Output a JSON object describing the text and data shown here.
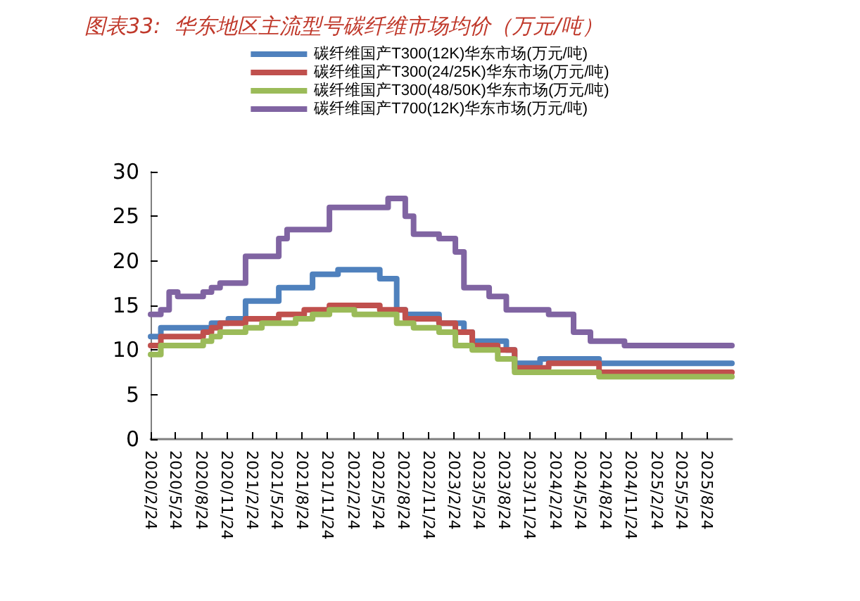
{
  "chart_data": {
    "type": "step",
    "title": "图表33:  华东地区主流型号碳纤维市场均价（万元/吨）",
    "legend": "top",
    "marker": "none",
    "line_style": "solid",
    "grid": false,
    "xlim": [
      "2020-02-24",
      "2025-11-24"
    ],
    "xticks": [
      {
        "value": "2020-02-24",
        "label": "2020/2/24"
      },
      {
        "value": "2020-05-24",
        "label": "2020/5/24"
      },
      {
        "value": "2020-08-24",
        "label": "2020/8/24"
      },
      {
        "value": "2020-11-24",
        "label": "2020/11/24"
      },
      {
        "value": "2021-02-24",
        "label": "2021/2/24"
      },
      {
        "value": "2021-05-24",
        "label": "2021/5/24"
      },
      {
        "value": "2021-08-24",
        "label": "2021/8/24"
      },
      {
        "value": "2021-11-24",
        "label": "2021/11/24"
      },
      {
        "value": "2022-02-24",
        "label": "2022/2/24"
      },
      {
        "value": "2022-05-24",
        "label": "2022/5/24"
      },
      {
        "value": "2022-08-24",
        "label": "2022/8/24"
      },
      {
        "value": "2022-11-24",
        "label": "2022/11/24"
      },
      {
        "value": "2023-02-24",
        "label": "2023/2/24"
      },
      {
        "value": "2023-05-24",
        "label": "2023/5/24"
      },
      {
        "value": "2023-08-24",
        "label": "2023/8/24"
      },
      {
        "value": "2023-11-24",
        "label": "2023/11/24"
      },
      {
        "value": "2024-02-24",
        "label": "2024/2/24"
      },
      {
        "value": "2024-05-24",
        "label": "2024/5/24"
      },
      {
        "value": "2024-08-24",
        "label": "2024/8/24"
      },
      {
        "value": "2024-11-24",
        "label": "2024/11/24"
      },
      {
        "value": "2025-02-24",
        "label": "2025/2/24"
      },
      {
        "value": "2025-05-24",
        "label": "2025/5/24"
      },
      {
        "value": "2025-08-24",
        "label": "2025/8/24"
      }
    ],
    "ylim": [
      0,
      30
    ],
    "yticks": [
      0,
      5,
      10,
      15,
      20,
      25,
      30
    ],
    "series": [
      {
        "name": "碳纤维国产T300(12K)华东市场(万元/吨)",
        "color": "#4f81bd",
        "x": [
          "2020-02-24",
          "2020-04",
          "2020-10",
          "2020-12",
          "2021-02",
          "2021-06",
          "2021-10",
          "2022-01",
          "2022-06",
          "2022-08",
          "2022-09",
          "2023-01",
          "2023-04",
          "2023-05",
          "2023-09",
          "2023-10",
          "2024-01",
          "2024-08",
          "2025-11-24"
        ],
        "values": [
          11.5,
          12.5,
          13,
          13.5,
          15.5,
          17,
          18.5,
          19,
          18,
          14.5,
          14,
          13,
          12,
          11,
          10,
          8.5,
          9,
          8.5,
          8.5
        ]
      },
      {
        "name": "碳纤维国产T300(24/25K)华东市场(万元/吨)",
        "color": "#c0504d",
        "x": [
          "2020-02-24",
          "2020-04",
          "2020-09",
          "2020-10",
          "2020-11",
          "2021-02",
          "2021-06",
          "2021-09",
          "2021-12",
          "2022-06",
          "2022-08",
          "2022-09",
          "2023-01",
          "2023-03",
          "2023-05",
          "2023-08",
          "2023-10",
          "2024-02",
          "2024-08",
          "2025-11-24"
        ],
        "values": [
          10.5,
          11.5,
          12,
          12.5,
          13,
          13.5,
          14,
          14.5,
          15,
          14.5,
          14.5,
          13.5,
          13,
          12,
          10.5,
          10,
          8,
          8.5,
          7.5,
          7.5
        ]
      },
      {
        "name": "碳纤维国产T300(48/50K)华东市场(万元/吨)",
        "color": "#9bbb59",
        "x": [
          "2020-02-24",
          "2020-04",
          "2020-09",
          "2020-10",
          "2020-11",
          "2021-02",
          "2021-04",
          "2021-08",
          "2021-10",
          "2021-12",
          "2022-03",
          "2022-08",
          "2022-10",
          "2023-01",
          "2023-03",
          "2023-05",
          "2023-08",
          "2023-10",
          "2024-08",
          "2025-11-24"
        ],
        "values": [
          9.5,
          10.5,
          11,
          11.5,
          12,
          12.5,
          13,
          13.5,
          14,
          14.5,
          14,
          13,
          12.5,
          12,
          10.5,
          10,
          9,
          7.5,
          7,
          7
        ]
      },
      {
        "name": "碳纤维国产T700(12K)华东市场(万元/吨)",
        "color": "#8064a2",
        "x": [
          "2020-02-24",
          "2020-04",
          "2020-05",
          "2020-06",
          "2020-09",
          "2020-10",
          "2020-11",
          "2021-02",
          "2021-06",
          "2021-07",
          "2021-12",
          "2022-07",
          "2022-09",
          "2022-10",
          "2023-01",
          "2023-03",
          "2023-04",
          "2023-07",
          "2023-09",
          "2024-02",
          "2024-05",
          "2024-07",
          "2024-11",
          "2025-11-24"
        ],
        "values": [
          14,
          14.5,
          16.5,
          16,
          16.5,
          17,
          17.5,
          20.5,
          22.5,
          23.5,
          26,
          27,
          25,
          23,
          22.5,
          21,
          17,
          16,
          14.5,
          14,
          12,
          11,
          10.5,
          10.5
        ]
      }
    ]
  }
}
